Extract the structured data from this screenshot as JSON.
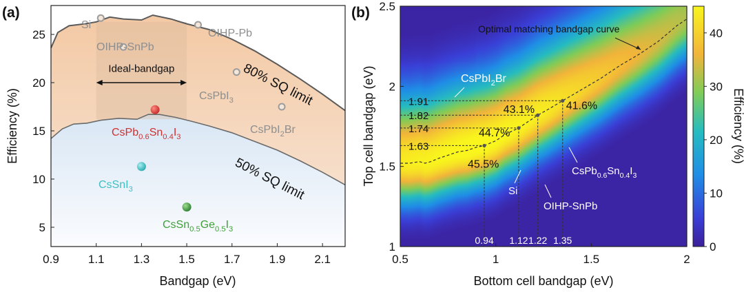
{
  "panel_a": {
    "label": "(a)",
    "chart_data": {
      "type": "scatter",
      "xlabel": "Bandgap (eV)",
      "ylabel": "Efficiency (%)",
      "xlim": [
        0.9,
        2.2
      ],
      "ylim": [
        3,
        28
      ],
      "xticks": [
        "0.9",
        "1.1",
        "1.3",
        "1.5",
        "1.7",
        "1.9",
        "2.1"
      ],
      "xtick_values": [
        0.9,
        1.1,
        1.3,
        1.5,
        1.7,
        1.9,
        2.1
      ],
      "yticks": [
        "5",
        "10",
        "15",
        "20",
        "25"
      ],
      "ytick_values": [
        5,
        10,
        15,
        20,
        25
      ],
      "sq80_label": "80% SQ limit",
      "sq50_label": "50% SQ limit",
      "ideal_label": "Ideal-bandgap",
      "ideal_range": [
        1.1,
        1.5
      ],
      "curve_80": [
        [
          0.9,
          23.6
        ],
        [
          0.93,
          25.2
        ],
        [
          0.98,
          25.9
        ],
        [
          1.05,
          26.1
        ],
        [
          1.1,
          26.3
        ],
        [
          1.16,
          26.8
        ],
        [
          1.22,
          26.6
        ],
        [
          1.3,
          26.5
        ],
        [
          1.35,
          27.0
        ],
        [
          1.43,
          26.6
        ],
        [
          1.5,
          26.1
        ],
        [
          1.6,
          25.5
        ],
        [
          1.7,
          24.5
        ],
        [
          1.8,
          23.3
        ],
        [
          1.9,
          21.9
        ],
        [
          2.0,
          20.4
        ],
        [
          2.1,
          18.8
        ],
        [
          2.2,
          17.1
        ]
      ],
      "curve_50": [
        [
          0.9,
          14.2
        ],
        [
          0.95,
          15.2
        ],
        [
          1.0,
          15.7
        ],
        [
          1.06,
          15.8
        ],
        [
          1.12,
          16.1
        ],
        [
          1.2,
          16.3
        ],
        [
          1.28,
          16.2
        ],
        [
          1.33,
          16.7
        ],
        [
          1.38,
          16.7
        ],
        [
          1.45,
          16.4
        ],
        [
          1.52,
          16.0
        ],
        [
          1.6,
          15.5
        ],
        [
          1.7,
          14.8
        ],
        [
          1.8,
          13.9
        ],
        [
          1.9,
          13.0
        ],
        [
          2.0,
          11.9
        ],
        [
          2.1,
          10.7
        ],
        [
          2.2,
          9.4
        ]
      ],
      "points": [
        {
          "name": "Si",
          "x": 1.12,
          "y": 26.7,
          "kind": "hollow",
          "color": "#9c9c9c"
        },
        {
          "name": "OIHP-SnPb",
          "x": 1.22,
          "y": 23.7,
          "kind": "hollow",
          "color": "#9c9c9c"
        },
        {
          "name": "OIHP-Pb",
          "x": 1.55,
          "y": 26.0,
          "kind": "hollow",
          "color": "#9c9c9c"
        },
        {
          "name": "CsPbI3",
          "x": 1.72,
          "y": 21.1,
          "kind": "hollow",
          "color": "#9c9c9c"
        },
        {
          "name": "CsPbI2Br",
          "x": 1.92,
          "y": 17.5,
          "kind": "hollow",
          "color": "#9c9c9c"
        },
        {
          "name": "CsPb0.6Sn0.4I3",
          "x": 1.36,
          "y": 17.2,
          "kind": "solid",
          "color": "#e53935"
        },
        {
          "name": "CsSnI3",
          "x": 1.3,
          "y": 11.3,
          "kind": "solid",
          "color": "#49c6c9"
        },
        {
          "name": "CsSn0.5Ge0.5I3",
          "x": 1.5,
          "y": 7.1,
          "kind": "solid",
          "color": "#4caf50"
        }
      ],
      "point_labels": {
        "si": "Si",
        "oihp_snpb": "OIHP-SnPb",
        "oihp_pb": "OIHP-Pb",
        "cspbi3": [
          "CsPbI",
          "3",
          ""
        ],
        "cspbi2br": [
          "CsPbI",
          "2",
          "Br"
        ],
        "cspbsn": [
          "CsPb",
          "0.6",
          "Sn",
          "0.4",
          "I",
          "3"
        ],
        "cssni3": [
          "CsSnI",
          "3"
        ],
        "cssnge": [
          "CsSn",
          "0.5",
          "Ge",
          "0.5",
          "I",
          "3"
        ]
      },
      "colors": {
        "gray": "#8e8e8e",
        "red": "#d32f2f",
        "cyan": "#3fbfc4",
        "green": "#3f9f3a",
        "line": "#555555"
      }
    }
  },
  "panel_b": {
    "label": "(b)",
    "chart_data": {
      "type": "heatmap",
      "xlabel": "Bottom cell bandgap (eV)",
      "ylabel": "Top cell bandgap (eV)",
      "xlim": [
        0.5,
        2.0
      ],
      "ylim": [
        1.0,
        2.5
      ],
      "xticks": [
        "0.5",
        "1",
        "1.5",
        "2"
      ],
      "xtick_values": [
        0.5,
        1.0,
        1.5,
        2.0
      ],
      "yticks": [
        "1",
        "1.5",
        "2",
        "2.5"
      ],
      "ytick_values": [
        1.0,
        1.5,
        2.0,
        2.5
      ],
      "colorbar_label": "Efficiency (%)",
      "colorbar_ticks": [
        "0",
        "10",
        "20",
        "30",
        "40"
      ],
      "colorbar_values": [
        0,
        10,
        20,
        30,
        40
      ],
      "colorbar_range": [
        0,
        45
      ],
      "curve_label": "Optimal matching bandgap curve",
      "optimal_curve": [
        [
          0.5,
          1.52
        ],
        [
          0.55,
          1.52
        ],
        [
          0.6,
          1.53
        ],
        [
          0.63,
          1.52
        ],
        [
          0.66,
          1.53
        ],
        [
          0.7,
          1.55
        ],
        [
          0.75,
          1.57
        ],
        [
          0.8,
          1.59
        ],
        [
          0.85,
          1.6
        ],
        [
          0.9,
          1.62
        ],
        [
          0.94,
          1.63
        ],
        [
          1.0,
          1.66
        ],
        [
          1.05,
          1.7
        ],
        [
          1.12,
          1.74
        ],
        [
          1.17,
          1.78
        ],
        [
          1.22,
          1.82
        ],
        [
          1.28,
          1.86
        ],
        [
          1.35,
          1.91
        ],
        [
          1.45,
          1.98
        ],
        [
          1.55,
          2.05
        ],
        [
          1.65,
          2.13
        ],
        [
          1.75,
          2.2
        ],
        [
          1.85,
          2.28
        ],
        [
          1.95,
          2.38
        ],
        [
          2.0,
          2.42
        ]
      ],
      "devices": [
        {
          "bottom": 0.94,
          "top": 1.63,
          "efficiency": "45.5%"
        },
        {
          "bottom": 1.12,
          "top": 1.74,
          "efficiency": "44.7%"
        },
        {
          "bottom": 1.22,
          "top": 1.82,
          "efficiency": "43.1%"
        },
        {
          "bottom": 1.35,
          "top": 1.91,
          "efficiency": "41.6%"
        }
      ],
      "bottom_labels": [
        "0.94",
        "1.12",
        "1.22",
        "1.35"
      ],
      "top_labels": [
        "1.63",
        "1.74",
        "1.82",
        "1.91"
      ],
      "annotations": {
        "cspbi2br": [
          "CsPbI",
          "2",
          "Br"
        ],
        "si": "Si",
        "oihp_snpb": "OIHP-SnPb",
        "cspbsn": [
          "CsPb",
          "0.6",
          "Sn",
          "0.4",
          "I",
          "3"
        ]
      }
    }
  }
}
